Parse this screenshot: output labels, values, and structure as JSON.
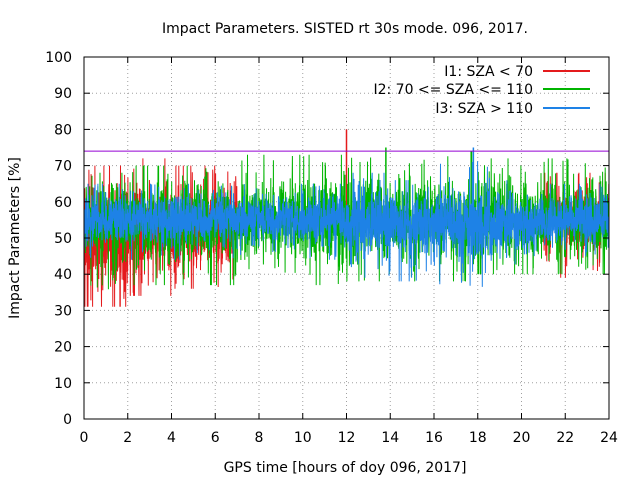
{
  "chart_data": {
    "type": "line",
    "title": "Impact Parameters. SISTED rt 30s mode. 096, 2017.",
    "xlabel": "GPS time [hours of doy 096, 2017]",
    "ylabel": "Impact Parameters [%]",
    "xlim": [
      0,
      24
    ],
    "ylim": [
      0,
      100
    ],
    "x_ticks": [
      0,
      2,
      4,
      6,
      8,
      10,
      12,
      14,
      16,
      18,
      20,
      22,
      24
    ],
    "y_ticks": [
      0,
      10,
      20,
      30,
      40,
      50,
      60,
      70,
      80,
      90,
      100
    ],
    "grid": true,
    "legend_position": "top-right",
    "sample_step_hours": 0.008333,
    "threshold": {
      "value": 74,
      "color": "#9400d3"
    },
    "series": [
      {
        "name": "I1: SZA < 70",
        "color": "#e41a1c",
        "center": [
          [
            0,
            52
          ],
          [
            1,
            51
          ],
          [
            2,
            50
          ],
          [
            3,
            52
          ],
          [
            4,
            51
          ],
          [
            5,
            52
          ],
          [
            6,
            53
          ],
          [
            8,
            54
          ],
          [
            10,
            54
          ],
          [
            12,
            54
          ],
          [
            14,
            54
          ],
          [
            16,
            55
          ],
          [
            18,
            55
          ],
          [
            20,
            55
          ],
          [
            22,
            55
          ],
          [
            24,
            55
          ]
        ],
        "spread": [
          [
            0,
            8
          ],
          [
            1.5,
            9
          ],
          [
            3,
            7.5
          ],
          [
            5,
            6.5
          ],
          [
            8,
            5.5
          ],
          [
            12,
            5
          ],
          [
            16,
            5
          ],
          [
            20,
            5
          ],
          [
            24,
            5.5
          ]
        ],
        "active_ranges": [
          [
            0,
            7
          ],
          [
            21,
            24
          ]
        ],
        "min_by_region": [
          [
            0,
            2,
            31
          ],
          [
            2,
            4,
            34
          ],
          [
            4,
            6,
            36
          ],
          [
            6,
            12,
            33
          ],
          [
            20,
            24,
            39
          ]
        ],
        "max_by_region": [
          [
            0,
            2,
            70
          ],
          [
            2,
            4,
            72
          ],
          [
            4,
            6,
            70
          ],
          [
            6,
            12,
            73
          ],
          [
            20,
            24,
            68
          ]
        ],
        "spikes": [
          {
            "x": 12.0,
            "y": 80
          }
        ]
      },
      {
        "name": "I2: 70 <= SZA <= 110",
        "color": "#00b400",
        "center": [
          [
            0,
            55
          ],
          [
            2,
            55
          ],
          [
            4,
            54
          ],
          [
            6,
            54
          ],
          [
            8,
            55
          ],
          [
            10,
            55
          ],
          [
            12,
            55
          ],
          [
            14,
            55
          ],
          [
            16,
            55
          ],
          [
            18,
            55
          ],
          [
            20,
            55
          ],
          [
            22,
            55
          ],
          [
            24,
            55
          ]
        ],
        "spread": [
          [
            0,
            5.5
          ],
          [
            4,
            6
          ],
          [
            8,
            6
          ],
          [
            12,
            6.5
          ],
          [
            16,
            6
          ],
          [
            20,
            5.5
          ],
          [
            24,
            5.5
          ]
        ],
        "active_ranges": [
          [
            0,
            24
          ]
        ],
        "min_by_region": [
          [
            0,
            2,
            34
          ],
          [
            2,
            6,
            37
          ],
          [
            6,
            12,
            37
          ],
          [
            12,
            18,
            38
          ],
          [
            18,
            24,
            40
          ]
        ],
        "max_by_region": [
          [
            0,
            2,
            68
          ],
          [
            2,
            6,
            70
          ],
          [
            6,
            12,
            73
          ],
          [
            12,
            18,
            75
          ],
          [
            18,
            24,
            72
          ]
        ],
        "spikes": [
          {
            "x": 13.8,
            "y": 75
          },
          {
            "x": 17.7,
            "y": 74
          }
        ]
      },
      {
        "name": "I3: SZA > 110",
        "color": "#1e82e6",
        "center": [
          [
            0,
            55
          ],
          [
            2,
            55
          ],
          [
            4,
            55
          ],
          [
            6,
            55
          ],
          [
            8,
            55
          ],
          [
            10,
            55
          ],
          [
            12,
            55
          ],
          [
            14,
            54
          ],
          [
            16,
            54
          ],
          [
            18,
            54
          ],
          [
            20,
            54
          ],
          [
            22,
            55
          ],
          [
            24,
            55
          ]
        ],
        "spread": [
          [
            0,
            4
          ],
          [
            4,
            3.5
          ],
          [
            8,
            3
          ],
          [
            12,
            4
          ],
          [
            14,
            5.5
          ],
          [
            16,
            5
          ],
          [
            18,
            5.5
          ],
          [
            20,
            3.5
          ],
          [
            24,
            3.5
          ]
        ],
        "active_ranges": [
          [
            0,
            24
          ]
        ],
        "min_by_region": [
          [
            0,
            12,
            44
          ],
          [
            12,
            14,
            36
          ],
          [
            14,
            16,
            38
          ],
          [
            16,
            20,
            36
          ],
          [
            20,
            24,
            45
          ]
        ],
        "max_by_region": [
          [
            0,
            12,
            65
          ],
          [
            12,
            14,
            68
          ],
          [
            14,
            16,
            66
          ],
          [
            16,
            20,
            75
          ],
          [
            20,
            24,
            65
          ]
        ],
        "spikes": [
          {
            "x": 17.8,
            "y": 75
          }
        ]
      }
    ]
  }
}
